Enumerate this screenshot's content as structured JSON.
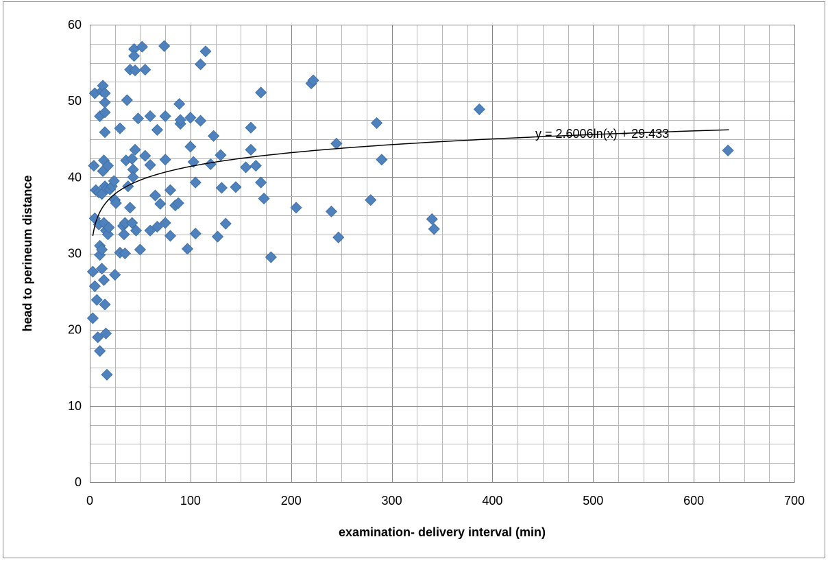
{
  "chart_data": {
    "type": "scatter",
    "xlabel": "examination- delivery interval (min)",
    "ylabel": "head to perineum distance",
    "xlim": [
      0,
      700
    ],
    "ylim": [
      0,
      60
    ],
    "xticks": [
      "0",
      "100",
      "200",
      "300",
      "400",
      "500",
      "600",
      "700"
    ],
    "yticks": [
      "0",
      "10",
      "20",
      "30",
      "40",
      "50",
      "60"
    ],
    "grid": true,
    "legend": "none",
    "marker": "diamond",
    "marker_color": "#4F81BD",
    "trendline": {
      "type": "logarithmic",
      "a": 2.6006,
      "b": 29.433,
      "x_range": [
        3,
        635
      ],
      "equation": "y = 2.6006ln(x) + 29.433"
    },
    "series": [
      {
        "points": [
          [
            3,
            21.5
          ],
          [
            3,
            27.6
          ],
          [
            4,
            41.5
          ],
          [
            5,
            34.6
          ],
          [
            5,
            25.7
          ],
          [
            5,
            51
          ],
          [
            6,
            38.3
          ],
          [
            7,
            23.9
          ],
          [
            8,
            19
          ],
          [
            9,
            33.8
          ],
          [
            9,
            38
          ],
          [
            10,
            17.2
          ],
          [
            10,
            29.8
          ],
          [
            10,
            48
          ],
          [
            10,
            31
          ],
          [
            12,
            51.3
          ],
          [
            12,
            37.8
          ],
          [
            12,
            30.5
          ],
          [
            12,
            28
          ],
          [
            13,
            52
          ],
          [
            13,
            40.8
          ],
          [
            14,
            34
          ],
          [
            14,
            42.2
          ],
          [
            14,
            26.5
          ],
          [
            15,
            38.8
          ],
          [
            15,
            45.9
          ],
          [
            15,
            48.5
          ],
          [
            15,
            49.8
          ],
          [
            15,
            51
          ],
          [
            15,
            23.3
          ],
          [
            16,
            19.5
          ],
          [
            16,
            33
          ],
          [
            17,
            14.1
          ],
          [
            17,
            38.5
          ],
          [
            18,
            32.5
          ],
          [
            18,
            41.5
          ],
          [
            19,
            33.4
          ],
          [
            20,
            38.4
          ],
          [
            22,
            38.8
          ],
          [
            24,
            39.5
          ],
          [
            25,
            37
          ],
          [
            25,
            27.2
          ],
          [
            26,
            36.6
          ],
          [
            30,
            46.4
          ],
          [
            30,
            30.1
          ],
          [
            33,
            33.6
          ],
          [
            34,
            32.5
          ],
          [
            35,
            34
          ],
          [
            35,
            30
          ],
          [
            36,
            42.2
          ],
          [
            37,
            50.1
          ],
          [
            38,
            38.8
          ],
          [
            40,
            54.1
          ],
          [
            40,
            36
          ],
          [
            42,
            42.4
          ],
          [
            42,
            34
          ],
          [
            43,
            41
          ],
          [
            43,
            40
          ],
          [
            44,
            56.8
          ],
          [
            44,
            55.9
          ],
          [
            45,
            54
          ],
          [
            45,
            43.6
          ],
          [
            46,
            33
          ],
          [
            48,
            47.7
          ],
          [
            50,
            30.5
          ],
          [
            52,
            57.1
          ],
          [
            55,
            54.1
          ],
          [
            55,
            42.8
          ],
          [
            60,
            48
          ],
          [
            60,
            41.6
          ],
          [
            60,
            33
          ],
          [
            65,
            37.6
          ],
          [
            67,
            46.2
          ],
          [
            67,
            33.5
          ],
          [
            70,
            36.5
          ],
          [
            74,
            57.2
          ],
          [
            75,
            48
          ],
          [
            75,
            42.3
          ],
          [
            75,
            34
          ],
          [
            80,
            38.3
          ],
          [
            80,
            32.3
          ],
          [
            85,
            36.3
          ],
          [
            88,
            36.6
          ],
          [
            89,
            49.6
          ],
          [
            90,
            47
          ],
          [
            90,
            47.5
          ],
          [
            97,
            30.6
          ],
          [
            100,
            44
          ],
          [
            100,
            47.8
          ],
          [
            103,
            42
          ],
          [
            105,
            39.3
          ],
          [
            105,
            32.6
          ],
          [
            110,
            54.8
          ],
          [
            110,
            47.4
          ],
          [
            115,
            56.5
          ],
          [
            120,
            41.7
          ],
          [
            123,
            45.4
          ],
          [
            127,
            32.2
          ],
          [
            130,
            42.9
          ],
          [
            131,
            38.6
          ],
          [
            135,
            33.9
          ],
          [
            145,
            38.7
          ],
          [
            155,
            41.3
          ],
          [
            160,
            46.5
          ],
          [
            160,
            43.6
          ],
          [
            165,
            41.5
          ],
          [
            170,
            51.1
          ],
          [
            170,
            39.3
          ],
          [
            173,
            37.2
          ],
          [
            180,
            29.5
          ],
          [
            205,
            36
          ],
          [
            220,
            52.3
          ],
          [
            222,
            52.7
          ],
          [
            240,
            35.5
          ],
          [
            245,
            44.4
          ],
          [
            247,
            32.1
          ],
          [
            279,
            37
          ],
          [
            285,
            47.1
          ],
          [
            290,
            42.3
          ],
          [
            340,
            34.5
          ],
          [
            342,
            33.2
          ],
          [
            387,
            48.9
          ],
          [
            634,
            43.5
          ]
        ]
      }
    ]
  }
}
